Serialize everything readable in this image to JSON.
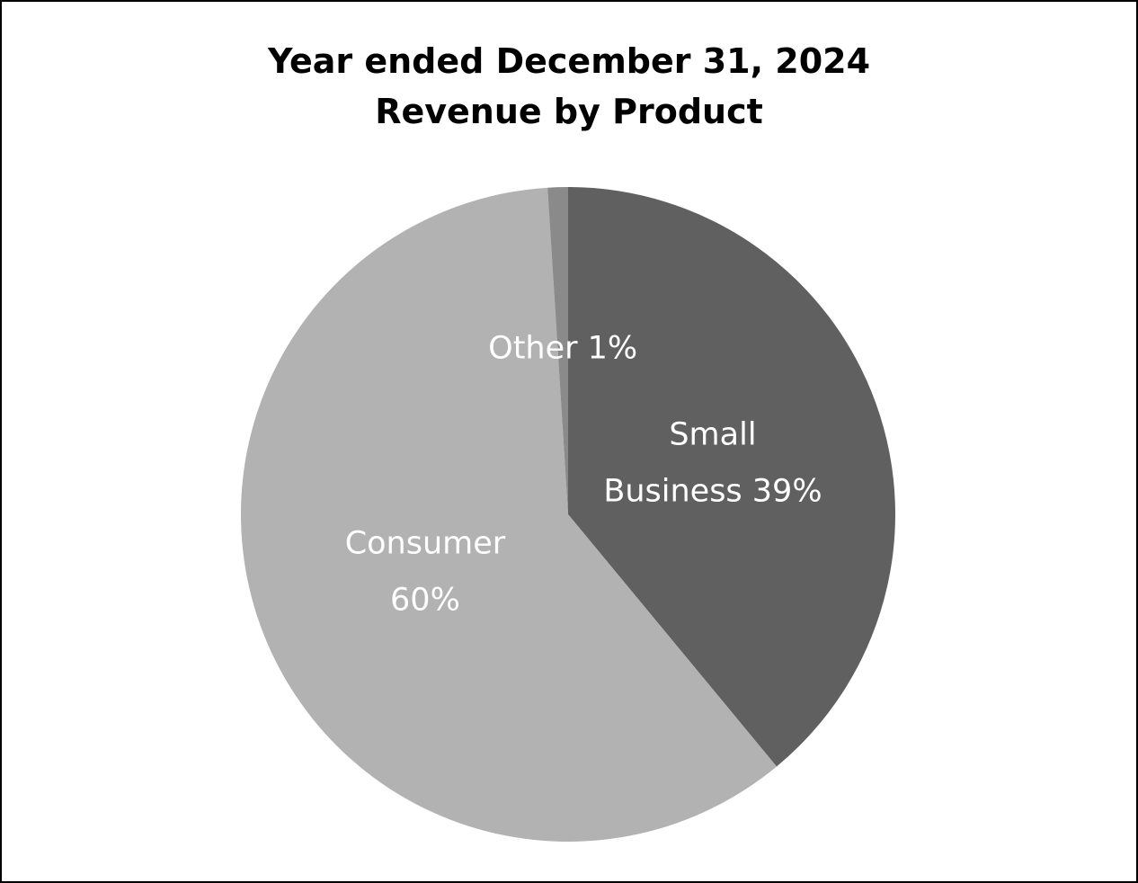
{
  "chart_data": {
    "type": "pie",
    "title": "Year ended December 31, 2024",
    "subtitle": "Revenue by Product",
    "slices": [
      {
        "label": "Small Business",
        "label_lines": [
          "Small",
          "Business 39%"
        ],
        "percent_text": "39%",
        "value": 39,
        "color": "#606060"
      },
      {
        "label": "Consumer",
        "label_lines": [
          "Consumer",
          "60%"
        ],
        "percent_text": "60%",
        "value": 60,
        "color": "#b2b2b2"
      },
      {
        "label": "Other",
        "label_lines": [
          "Other 1%"
        ],
        "percent_text": "1%",
        "value": 1,
        "color": "#8a8a8a"
      }
    ],
    "start_angle_deg": 0,
    "direction": "clockwise",
    "legend": "none"
  }
}
